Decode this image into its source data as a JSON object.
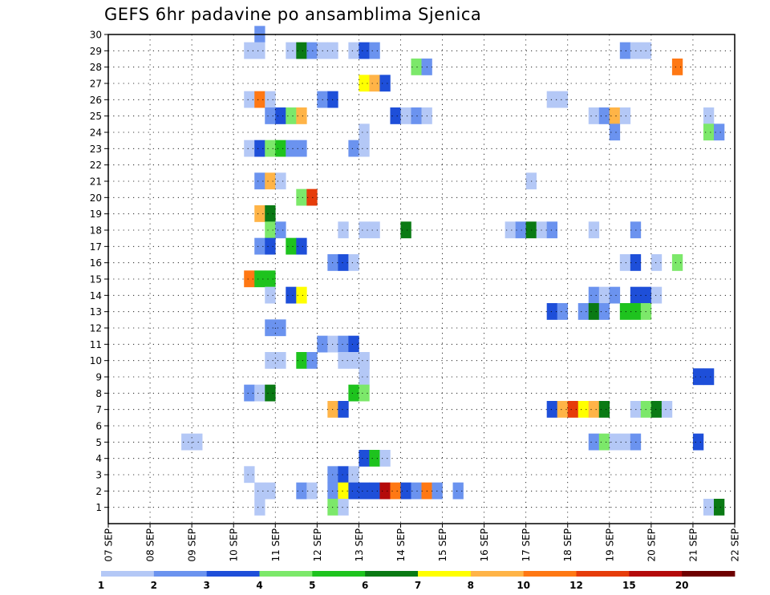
{
  "chart_data": {
    "type": "heatmap",
    "title": "GEFS 6hr padavine po ansamblima Sjenica",
    "x_tick_labels": [
      "07 SEP",
      "08 SEP",
      "09 SEP",
      "10 SEP",
      "11 SEP",
      "12 SEP",
      "13 SEP",
      "14 SEP",
      "15 SEP",
      "16 SEP",
      "17 SEP",
      "18 SEP",
      "19 SEP",
      "20 SEP",
      "21 SEP",
      "22 SEP"
    ],
    "y_tick_labels": [
      "1",
      "2",
      "3",
      "4",
      "5",
      "6",
      "7",
      "8",
      "9",
      "10",
      "11",
      "12",
      "13",
      "14",
      "15",
      "16",
      "17",
      "18",
      "19",
      "20",
      "21",
      "22",
      "23",
      "24",
      "25",
      "26",
      "27",
      "28",
      "29",
      "30"
    ],
    "grid": true,
    "colorbar": {
      "labels": [
        "1",
        "2",
        "3",
        "4",
        "5",
        "6",
        "7",
        "8",
        "10",
        "12",
        "15",
        "20"
      ],
      "colors": [
        "#b4c8f6",
        "#6b93ef",
        "#1e4fd9",
        "#7ce86a",
        "#1ec31e",
        "#0a7a14",
        "#ffff00",
        "#ffb447",
        "#ff7814",
        "#e63c0a",
        "#b40a0a",
        "#6e0000"
      ]
    },
    "x_unit": "6-hour steps from 07 SEP",
    "cells": [
      [
        30,
        14,
        2
      ],
      [
        29,
        13,
        1
      ],
      [
        29,
        14,
        1
      ],
      [
        29,
        17,
        1
      ],
      [
        29,
        18,
        6
      ],
      [
        29,
        19,
        2
      ],
      [
        29,
        20,
        1
      ],
      [
        29,
        21,
        1
      ],
      [
        29,
        23,
        1
      ],
      [
        29,
        24,
        3
      ],
      [
        29,
        25,
        2
      ],
      [
        29,
        49,
        2
      ],
      [
        29,
        50,
        1
      ],
      [
        29,
        51,
        1
      ],
      [
        28,
        29,
        4
      ],
      [
        28,
        30,
        2
      ],
      [
        28,
        54,
        9
      ],
      [
        27,
        24,
        7
      ],
      [
        27,
        25,
        8
      ],
      [
        27,
        26,
        3
      ],
      [
        26,
        13,
        1
      ],
      [
        26,
        14,
        9
      ],
      [
        26,
        15,
        1
      ],
      [
        26,
        20,
        2
      ],
      [
        26,
        21,
        3
      ],
      [
        26,
        42,
        1
      ],
      [
        26,
        43,
        1
      ],
      [
        25,
        15,
        2
      ],
      [
        25,
        16,
        3
      ],
      [
        25,
        17,
        4
      ],
      [
        25,
        18,
        8
      ],
      [
        25,
        27,
        3
      ],
      [
        25,
        28,
        1
      ],
      [
        25,
        29,
        2
      ],
      [
        25,
        30,
        1
      ],
      [
        25,
        46,
        1
      ],
      [
        25,
        47,
        2
      ],
      [
        25,
        48,
        8
      ],
      [
        25,
        49,
        1
      ],
      [
        25,
        57,
        1
      ],
      [
        24,
        24,
        1
      ],
      [
        24,
        48,
        2
      ],
      [
        24,
        57,
        4
      ],
      [
        24,
        58,
        2
      ],
      [
        23,
        13,
        1
      ],
      [
        23,
        14,
        3
      ],
      [
        23,
        15,
        4
      ],
      [
        23,
        16,
        5
      ],
      [
        23,
        17,
        2
      ],
      [
        23,
        18,
        2
      ],
      [
        23,
        23,
        2
      ],
      [
        23,
        24,
        1
      ],
      [
        21,
        14,
        2
      ],
      [
        21,
        15,
        8
      ],
      [
        21,
        16,
        1
      ],
      [
        21,
        40,
        1
      ],
      [
        20,
        18,
        4
      ],
      [
        20,
        19,
        10
      ],
      [
        19,
        14,
        8
      ],
      [
        19,
        15,
        6
      ],
      [
        18,
        15,
        4
      ],
      [
        18,
        16,
        2
      ],
      [
        18,
        22,
        1
      ],
      [
        18,
        24,
        1
      ],
      [
        18,
        25,
        1
      ],
      [
        18,
        28,
        6
      ],
      [
        18,
        38,
        1
      ],
      [
        18,
        39,
        2
      ],
      [
        18,
        40,
        6
      ],
      [
        18,
        41,
        1
      ],
      [
        18,
        42,
        2
      ],
      [
        18,
        46,
        1
      ],
      [
        18,
        50,
        2
      ],
      [
        17,
        14,
        2
      ],
      [
        17,
        15,
        3
      ],
      [
        17,
        17,
        5
      ],
      [
        17,
        18,
        3
      ],
      [
        16,
        21,
        2
      ],
      [
        16,
        22,
        3
      ],
      [
        16,
        23,
        1
      ],
      [
        16,
        49,
        1
      ],
      [
        16,
        50,
        3
      ],
      [
        16,
        52,
        1
      ],
      [
        16,
        54,
        4
      ],
      [
        15,
        13,
        9
      ],
      [
        15,
        14,
        5
      ],
      [
        15,
        15,
        5
      ],
      [
        14,
        15,
        1
      ],
      [
        14,
        17,
        3
      ],
      [
        14,
        18,
        7
      ],
      [
        14,
        46,
        2
      ],
      [
        14,
        47,
        1
      ],
      [
        14,
        48,
        2
      ],
      [
        14,
        50,
        3
      ],
      [
        14,
        51,
        3
      ],
      [
        14,
        52,
        1
      ],
      [
        13,
        42,
        3
      ],
      [
        13,
        43,
        2
      ],
      [
        13,
        45,
        2
      ],
      [
        13,
        46,
        6
      ],
      [
        13,
        47,
        2
      ],
      [
        13,
        49,
        5
      ],
      [
        13,
        50,
        5
      ],
      [
        13,
        51,
        4
      ],
      [
        12,
        15,
        2
      ],
      [
        12,
        16,
        2
      ],
      [
        11,
        20,
        2
      ],
      [
        11,
        21,
        1
      ],
      [
        11,
        22,
        2
      ],
      [
        11,
        23,
        3
      ],
      [
        10,
        15,
        1
      ],
      [
        10,
        16,
        1
      ],
      [
        10,
        18,
        5
      ],
      [
        10,
        19,
        2
      ],
      [
        10,
        22,
        1
      ],
      [
        10,
        23,
        1
      ],
      [
        10,
        24,
        1
      ],
      [
        10,
        24,
        1
      ],
      [
        9,
        24,
        1
      ],
      [
        9,
        56,
        3
      ],
      [
        9,
        57,
        3
      ],
      [
        8,
        13,
        2
      ],
      [
        8,
        14,
        1
      ],
      [
        8,
        15,
        6
      ],
      [
        8,
        23,
        5
      ],
      [
        8,
        24,
        4
      ],
      [
        7,
        21,
        8
      ],
      [
        7,
        22,
        3
      ],
      [
        7,
        42,
        3
      ],
      [
        7,
        43,
        8
      ],
      [
        7,
        44,
        10
      ],
      [
        7,
        45,
        7
      ],
      [
        7,
        46,
        8
      ],
      [
        7,
        47,
        6
      ],
      [
        7,
        50,
        1
      ],
      [
        7,
        51,
        4
      ],
      [
        7,
        52,
        6
      ],
      [
        7,
        53,
        1
      ],
      [
        5,
        7,
        1
      ],
      [
        5,
        8,
        1
      ],
      [
        5,
        46,
        2
      ],
      [
        5,
        47,
        4
      ],
      [
        5,
        48,
        1
      ],
      [
        5,
        49,
        1
      ],
      [
        5,
        50,
        2
      ],
      [
        5,
        56,
        3
      ],
      [
        4,
        24,
        3
      ],
      [
        4,
        25,
        5
      ],
      [
        4,
        26,
        1
      ],
      [
        3,
        13,
        1
      ],
      [
        3,
        21,
        2
      ],
      [
        3,
        22,
        3
      ],
      [
        3,
        23,
        1
      ],
      [
        2,
        14,
        1
      ],
      [
        2,
        15,
        1
      ],
      [
        2,
        18,
        2
      ],
      [
        2,
        19,
        1
      ],
      [
        2,
        21,
        2
      ],
      [
        2,
        22,
        7
      ],
      [
        2,
        23,
        3
      ],
      [
        2,
        24,
        3
      ],
      [
        2,
        25,
        3
      ],
      [
        2,
        26,
        11
      ],
      [
        2,
        27,
        9
      ],
      [
        2,
        28,
        3
      ],
      [
        2,
        29,
        2
      ],
      [
        2,
        30,
        9
      ],
      [
        2,
        31,
        2
      ],
      [
        2,
        33,
        2
      ],
      [
        1,
        14,
        1
      ],
      [
        1,
        21,
        4
      ],
      [
        1,
        22,
        1
      ],
      [
        1,
        57,
        1
      ],
      [
        1,
        58,
        6
      ]
    ]
  }
}
